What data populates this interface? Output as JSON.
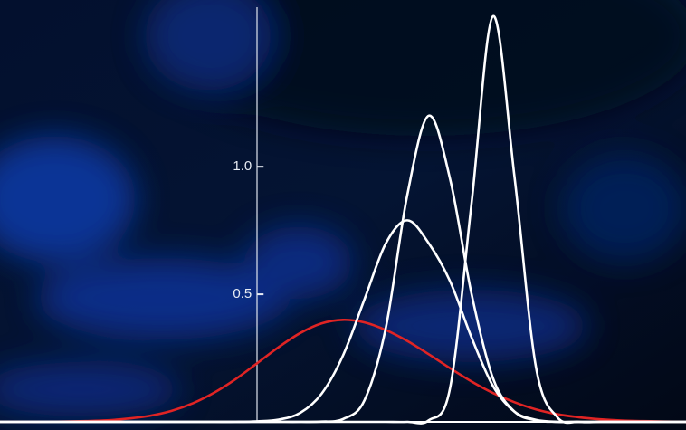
{
  "chart_data": {
    "type": "line",
    "x": [
      -6,
      -5.5,
      -5,
      -4.5,
      -4,
      -3.5,
      -3,
      -2.5,
      -2,
      -1.5,
      -1,
      -0.5,
      0,
      0.5,
      1,
      1.5,
      2,
      2.5,
      3,
      3.5,
      4,
      4.5,
      5,
      5.5,
      6,
      6.5,
      7,
      7.5,
      8,
      8.5,
      9,
      9.5,
      10
    ],
    "series": [
      {
        "color": "#e02424",
        "values": [
          0,
          0,
          0,
          0.001,
          0.003,
          0.006,
          0.013,
          0.024,
          0.043,
          0.073,
          0.115,
          0.168,
          0.23,
          0.293,
          0.348,
          0.386,
          0.4,
          0.39,
          0.36,
          0.317,
          0.265,
          0.21,
          0.158,
          0.113,
          0.077,
          0.049,
          0.03,
          0.018,
          0.01,
          0.005,
          0.003,
          0.001,
          0
        ]
      },
      {
        "color": "#ffffff",
        "values": [
          0,
          0,
          0,
          0,
          0,
          0,
          0,
          0,
          0,
          0,
          0,
          0,
          0.002,
          0.009,
          0.035,
          0.11,
          0.26,
          0.48,
          0.7,
          0.79,
          0.7,
          0.55,
          0.33,
          0.14,
          0.04,
          0.008,
          0,
          0,
          0,
          0,
          0,
          0,
          0
        ]
      },
      {
        "color": "#ffffff",
        "values": [
          0,
          0,
          0,
          0,
          0,
          0,
          0,
          0,
          0,
          0,
          0,
          0,
          0,
          0,
          0,
          0.001,
          0.011,
          0.084,
          0.37,
          0.89,
          1.2,
          0.95,
          0.5,
          0.17,
          0.04,
          0.006,
          0,
          0,
          0,
          0,
          0,
          0,
          0
        ]
      },
      {
        "color": "#ffffff",
        "values": [
          0,
          0,
          0,
          0,
          0,
          0,
          0,
          0,
          0,
          0,
          0,
          0,
          0,
          0,
          0,
          0,
          0,
          0,
          0,
          0,
          0.006,
          0.135,
          0.86,
          1.59,
          0.96,
          0.215,
          0.018,
          0,
          0,
          0,
          0,
          0,
          0
        ]
      }
    ],
    "xlim": [
      -6,
      10
    ],
    "ylim": [
      0,
      1.65
    ],
    "yticks": [
      0.5,
      {
        "value": 1,
        "label": "1.0"
      }
    ]
  }
}
